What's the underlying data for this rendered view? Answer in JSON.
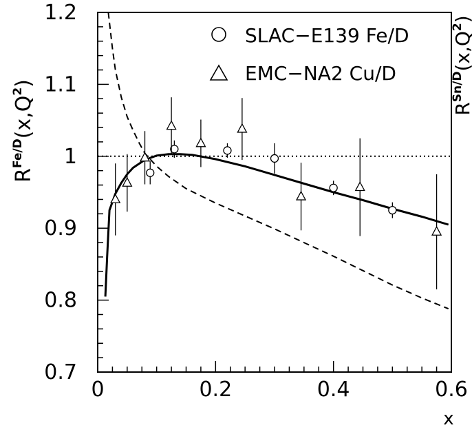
{
  "chart_data": {
    "type": "line",
    "xlim": [
      0,
      0.6
    ],
    "ylim": [
      0.7,
      1.2
    ],
    "x_ticks": [
      "0",
      "0.2",
      "0.4",
      "0.6"
    ],
    "y_ticks": [
      "0.7",
      "0.8",
      "0.9",
      "1",
      "1.1",
      "1.2"
    ],
    "xlabel": "x",
    "ylabel": "R",
    "ylabel_sup": "Fe/D",
    "ylabel_tail": "(x,Q",
    "ylabel_sup2": "2",
    "ylabel_end": ")",
    "next_panel_label": "R",
    "next_panel_sup": "Sn/D",
    "next_panel_tail": "(x,Q",
    "next_panel_sup2": "2",
    "next_panel_end": ")",
    "reference_line_y": 1.0,
    "legend": [
      {
        "marker": "circle",
        "label": "SLAC−E139 Fe/D"
      },
      {
        "marker": "triangle",
        "label": "EMC−NA2 Cu/D"
      }
    ],
    "series": [
      {
        "name": "SLAC−E139 Fe/D",
        "kind": "points",
        "marker": "circle",
        "points": [
          {
            "x": 0.089,
            "y": 0.977,
            "err": 0.016
          },
          {
            "x": 0.13,
            "y": 1.01,
            "err": 0.012
          },
          {
            "x": 0.22,
            "y": 1.008,
            "err": 0.01
          },
          {
            "x": 0.3,
            "y": 0.997,
            "err": 0.021
          },
          {
            "x": 0.4,
            "y": 0.956,
            "err": 0.01
          },
          {
            "x": 0.5,
            "y": 0.925,
            "err": 0.011
          }
        ]
      },
      {
        "name": "EMC−NA2 Cu/D",
        "kind": "points",
        "marker": "triangle",
        "points": [
          {
            "x": 0.03,
            "y": 0.94,
            "err": 0.05
          },
          {
            "x": 0.05,
            "y": 0.963,
            "err": 0.04
          },
          {
            "x": 0.08,
            "y": 0.998,
            "err": 0.037
          },
          {
            "x": 0.125,
            "y": 1.042,
            "err": 0.04
          },
          {
            "x": 0.175,
            "y": 1.018,
            "err": 0.033
          },
          {
            "x": 0.245,
            "y": 1.038,
            "err": 0.043
          },
          {
            "x": 0.345,
            "y": 0.944,
            "err": 0.047
          },
          {
            "x": 0.445,
            "y": 0.957,
            "err": 0.068
          },
          {
            "x": 0.575,
            "y": 0.895,
            "err": 0.08
          }
        ]
      },
      {
        "kind": "curve",
        "style": "solid",
        "points": [
          [
            0.013,
            0.805
          ],
          [
            0.016,
            0.86
          ],
          [
            0.02,
            0.925
          ],
          [
            0.03,
            0.948
          ],
          [
            0.04,
            0.963
          ],
          [
            0.05,
            0.975
          ],
          [
            0.06,
            0.984
          ],
          [
            0.08,
            0.995
          ],
          [
            0.1,
            1.001
          ],
          [
            0.12,
            1.003
          ],
          [
            0.14,
            1.003
          ],
          [
            0.16,
            1.002
          ],
          [
            0.2,
            0.996
          ],
          [
            0.25,
            0.986
          ],
          [
            0.3,
            0.974
          ],
          [
            0.35,
            0.962
          ],
          [
            0.4,
            0.95
          ],
          [
            0.45,
            0.939
          ],
          [
            0.5,
            0.927
          ],
          [
            0.55,
            0.916
          ],
          [
            0.595,
            0.905
          ]
        ]
      },
      {
        "kind": "curve",
        "style": "dashed",
        "points": [
          [
            0.018,
            1.2
          ],
          [
            0.025,
            1.15
          ],
          [
            0.03,
            1.12
          ],
          [
            0.04,
            1.082
          ],
          [
            0.05,
            1.055
          ],
          [
            0.06,
            1.036
          ],
          [
            0.07,
            1.019
          ],
          [
            0.08,
            1.004
          ],
          [
            0.1,
            0.986
          ],
          [
            0.12,
            0.972
          ],
          [
            0.15,
            0.955
          ],
          [
            0.2,
            0.935
          ],
          [
            0.25,
            0.917
          ],
          [
            0.3,
            0.899
          ],
          [
            0.35,
            0.88
          ],
          [
            0.4,
            0.861
          ],
          [
            0.45,
            0.841
          ],
          [
            0.5,
            0.821
          ],
          [
            0.55,
            0.803
          ],
          [
            0.595,
            0.788
          ]
        ]
      }
    ]
  }
}
